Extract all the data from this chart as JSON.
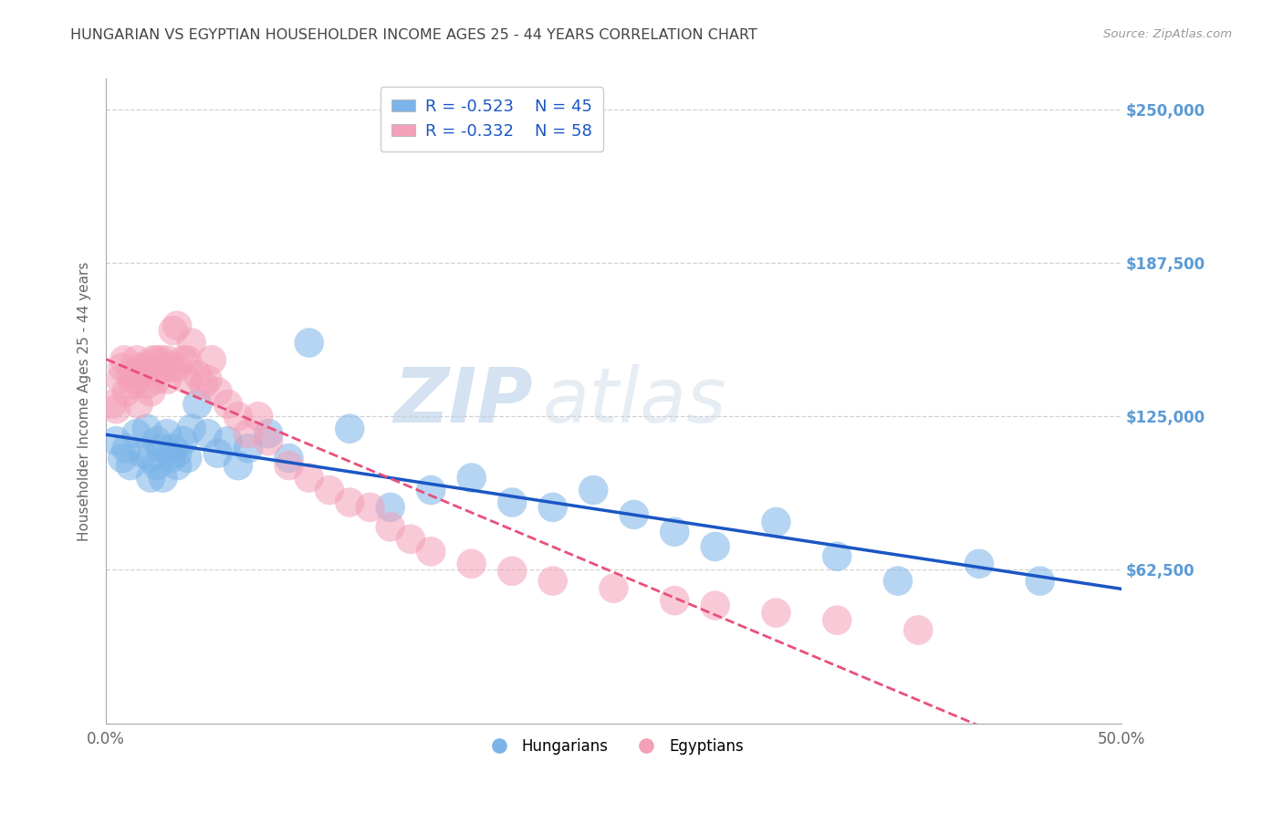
{
  "title": "HUNGARIAN VS EGYPTIAN HOUSEHOLDER INCOME AGES 25 - 44 YEARS CORRELATION CHART",
  "source": "Source: ZipAtlas.com",
  "ylabel": "Householder Income Ages 25 - 44 years",
  "watermark": "ZIPatlas",
  "xlim": [
    0.0,
    0.5
  ],
  "ylim": [
    0,
    262500
  ],
  "xticks": [
    0.0,
    0.1,
    0.2,
    0.3,
    0.4,
    0.5
  ],
  "xticklabels": [
    "0.0%",
    "",
    "",
    "",
    "",
    "50.0%"
  ],
  "ytick_positions": [
    0,
    62500,
    125000,
    187500,
    250000
  ],
  "ytick_labels_right": [
    "",
    "$62,500",
    "$125,000",
    "$187,500",
    "$250,000"
  ],
  "legend_r1": "-0.523",
  "legend_n1": "45",
  "legend_r2": "-0.332",
  "legend_n2": "58",
  "hungarian_color": "#7ab4e8",
  "egyptian_color": "#f4a0b8",
  "hungarian_line_color": "#1a56c4",
  "egyptian_line_color": "#e8507a",
  "background_color": "#ffffff",
  "grid_color": "#cccccc",
  "title_color": "#444444",
  "right_label_color": "#5b9bd5",
  "legend_text_color": "#1a56c4",
  "hungarians_x": [
    0.005,
    0.008,
    0.01,
    0.012,
    0.015,
    0.018,
    0.02,
    0.022,
    0.022,
    0.025,
    0.025,
    0.027,
    0.028,
    0.03,
    0.032,
    0.033,
    0.035,
    0.035,
    0.038,
    0.04,
    0.042,
    0.045,
    0.05,
    0.055,
    0.06,
    0.065,
    0.07,
    0.08,
    0.09,
    0.1,
    0.12,
    0.14,
    0.16,
    0.18,
    0.2,
    0.22,
    0.24,
    0.26,
    0.28,
    0.3,
    0.33,
    0.36,
    0.39,
    0.43,
    0.46
  ],
  "hungarians_y": [
    115000,
    108000,
    112000,
    105000,
    118000,
    110000,
    120000,
    108000,
    100000,
    115000,
    105000,
    112000,
    100000,
    118000,
    108000,
    112000,
    105000,
    110000,
    115000,
    108000,
    120000,
    130000,
    118000,
    110000,
    115000,
    105000,
    112000,
    118000,
    108000,
    155000,
    120000,
    88000,
    95000,
    100000,
    90000,
    88000,
    95000,
    85000,
    78000,
    72000,
    82000,
    68000,
    58000,
    65000,
    58000
  ],
  "egyptians_x": [
    0.003,
    0.005,
    0.007,
    0.008,
    0.009,
    0.01,
    0.012,
    0.013,
    0.015,
    0.015,
    0.016,
    0.017,
    0.018,
    0.02,
    0.02,
    0.022,
    0.023,
    0.025,
    0.025,
    0.027,
    0.028,
    0.03,
    0.03,
    0.032,
    0.033,
    0.035,
    0.035,
    0.038,
    0.04,
    0.04,
    0.042,
    0.045,
    0.048,
    0.05,
    0.052,
    0.055,
    0.06,
    0.065,
    0.07,
    0.075,
    0.08,
    0.09,
    0.1,
    0.11,
    0.12,
    0.13,
    0.14,
    0.15,
    0.16,
    0.18,
    0.2,
    0.22,
    0.25,
    0.28,
    0.3,
    0.33,
    0.36,
    0.4
  ],
  "egyptians_y": [
    130000,
    128000,
    140000,
    145000,
    148000,
    135000,
    142000,
    138000,
    148000,
    140000,
    130000,
    145000,
    142000,
    145000,
    138000,
    135000,
    148000,
    148000,
    140000,
    148000,
    145000,
    148000,
    140000,
    145000,
    160000,
    145000,
    162000,
    148000,
    140000,
    148000,
    155000,
    142000,
    138000,
    140000,
    148000,
    135000,
    130000,
    125000,
    118000,
    125000,
    115000,
    105000,
    100000,
    95000,
    90000,
    88000,
    80000,
    75000,
    70000,
    65000,
    62000,
    58000,
    55000,
    50000,
    48000,
    45000,
    42000,
    38000
  ]
}
